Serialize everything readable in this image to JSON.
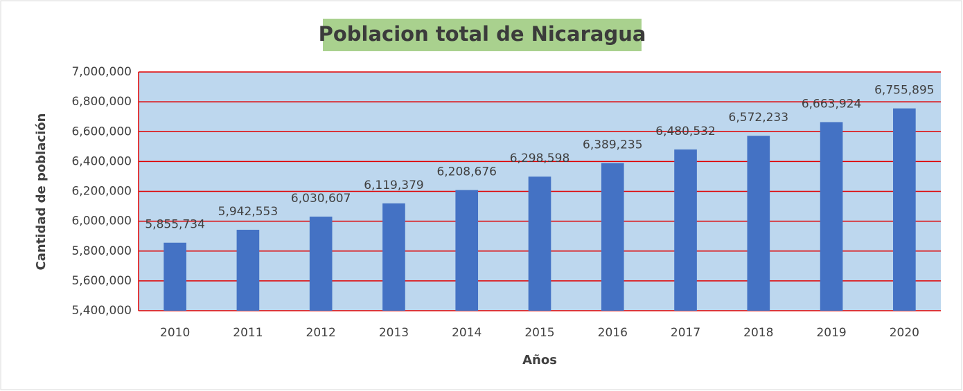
{
  "chart_data": {
    "type": "bar",
    "title": "Poblacion total de Nicaragua",
    "x_label": "Años",
    "y_label": "Cantidad de población",
    "categories": [
      "2010",
      "2011",
      "2012",
      "2013",
      "2014",
      "2015",
      "2016",
      "2017",
      "2018",
      "2019",
      "2020"
    ],
    "values": [
      5855734,
      5942553,
      6030607,
      6119379,
      6208676,
      6298598,
      6389235,
      6480532,
      6572233,
      6663924,
      6755895
    ],
    "value_labels": [
      "5,855,734",
      "5,942,553",
      "6,030,607",
      "6,119,379",
      "6,208,676",
      "6,298,598",
      "6,389,235",
      "6,480,532",
      "6,572,233",
      "6,663,924",
      "6,755,895"
    ],
    "color": "#4472c4",
    "ylim": [
      5400000,
      7000000
    ],
    "yticks": [
      {
        "value": 5400000,
        "label": "5,400,000"
      },
      {
        "value": 5600000,
        "label": "5,600,000"
      },
      {
        "value": 5800000,
        "label": "5,800,000"
      },
      {
        "value": 6000000,
        "label": "6,000,000"
      },
      {
        "value": 6200000,
        "label": "6,200,000"
      },
      {
        "value": 6400000,
        "label": "6,400,000"
      },
      {
        "value": 6600000,
        "label": "6,600,000"
      },
      {
        "value": 6800000,
        "label": "6,800,000"
      },
      {
        "value": 7000000,
        "label": "7,000,000"
      }
    ],
    "grid": true,
    "grid_color": "#e00000",
    "plot_background": "#bdd7ee",
    "title_background": "#a9d18e"
  }
}
